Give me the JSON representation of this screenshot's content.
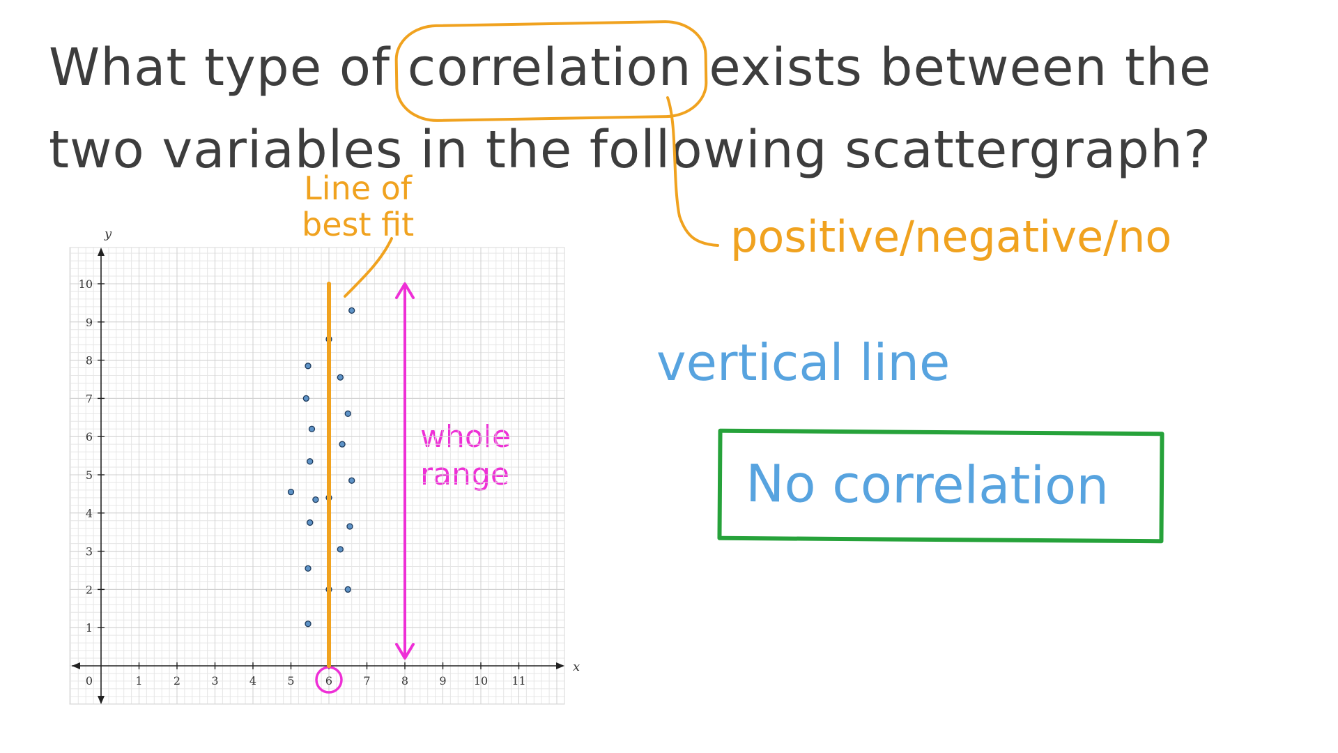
{
  "question": {
    "before": "What type of ",
    "highlight": "correlation",
    "after": " exists between the two variables in the following scattergraph?"
  },
  "annotations": {
    "options": "positive/negative/no",
    "vertical_line": "vertical line",
    "answer": "No correlation",
    "line_of_best_fit_1": "Line of",
    "line_of_best_fit_2": "best fit",
    "whole_range_1": "whole",
    "whole_range_2": "range"
  },
  "colors": {
    "orange": "#f0a21f",
    "blue": "#57a3df",
    "pink": "#ee2fd6",
    "green": "#26a23a",
    "points": "#5e93c7"
  },
  "chart_data": {
    "type": "scatter",
    "xlabel": "x",
    "ylabel": "y",
    "xlim": [
      -0.8,
      12
    ],
    "ylim": [
      -1,
      11
    ],
    "x_ticks": [
      1,
      2,
      3,
      4,
      5,
      6,
      7,
      8,
      9,
      10,
      11
    ],
    "y_ticks": [
      1,
      2,
      3,
      4,
      5,
      6,
      7,
      8,
      9,
      10
    ],
    "origin_label": "0",
    "grid": true,
    "points": [
      {
        "x": 5.45,
        "y": 1.1
      },
      {
        "x": 5.45,
        "y": 2.55
      },
      {
        "x": 5.5,
        "y": 3.75
      },
      {
        "x": 5.0,
        "y": 4.55
      },
      {
        "x": 5.65,
        "y": 4.35
      },
      {
        "x": 5.5,
        "y": 5.35
      },
      {
        "x": 5.55,
        "y": 6.2
      },
      {
        "x": 5.4,
        "y": 7.0
      },
      {
        "x": 5.45,
        "y": 7.85
      },
      {
        "x": 6.0,
        "y": 8.55
      },
      {
        "x": 6.6,
        "y": 9.3
      },
      {
        "x": 6.3,
        "y": 7.55
      },
      {
        "x": 6.5,
        "y": 6.6
      },
      {
        "x": 6.35,
        "y": 5.8
      },
      {
        "x": 6.6,
        "y": 4.85
      },
      {
        "x": 6.0,
        "y": 4.4
      },
      {
        "x": 6.55,
        "y": 3.65
      },
      {
        "x": 6.3,
        "y": 3.05
      },
      {
        "x": 6.5,
        "y": 2.0
      },
      {
        "x": 6.0,
        "y": 2.0
      }
    ],
    "line_of_best_fit": {
      "x": 6,
      "y_from": 0,
      "y_to": 10
    },
    "range_arrow": {
      "x": 8,
      "y_from": 0.2,
      "y_to": 10
    },
    "circled_tick": 6
  }
}
